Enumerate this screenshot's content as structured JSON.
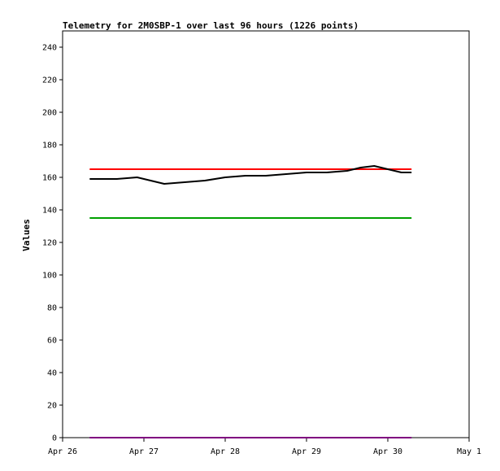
{
  "chart_data": {
    "type": "line",
    "title": "Telemetry for 2M0SBP-1 over last 96 hours (1226 points)",
    "xlabel": "",
    "ylabel": "Values",
    "x_unit": "date",
    "x_ticks": [
      "Apr 26",
      "Apr 27",
      "Apr 28",
      "Apr 29",
      "Apr 30",
      "May 1"
    ],
    "xlim": [
      "Apr 26 00:00",
      "May 1 00:00"
    ],
    "ylim": [
      0,
      250
    ],
    "y_ticks": [
      0,
      20,
      40,
      60,
      80,
      100,
      120,
      140,
      160,
      180,
      200,
      220,
      240
    ],
    "grid": false,
    "legend": "none",
    "series": [
      {
        "name": "",
        "color": "#ff0000",
        "x": [
          "Apr 26 08:00",
          "Apr 27 00:00",
          "Apr 28 00:00",
          "Apr 29 00:00",
          "Apr 29 12:00",
          "Apr 30 00:00",
          "Apr 30 07:00"
        ],
        "values": [
          165,
          165,
          165,
          165,
          165,
          165,
          165
        ]
      },
      {
        "name": "",
        "color": "#00a000",
        "x": [
          "Apr 26 08:00",
          "Apr 30 07:00"
        ],
        "values": [
          135,
          135
        ]
      },
      {
        "name": "",
        "color": "#000000",
        "x": [
          "Apr 26 08:00",
          "Apr 26 16:00",
          "Apr 26 22:00",
          "Apr 27 02:00",
          "Apr 27 06:00",
          "Apr 27 12:00",
          "Apr 27 18:00",
          "Apr 28 00:00",
          "Apr 28 06:00",
          "Apr 28 12:00",
          "Apr 28 18:00",
          "Apr 29 00:00",
          "Apr 29 06:00",
          "Apr 29 12:00",
          "Apr 29 16:00",
          "Apr 29 20:00",
          "Apr 30 00:00",
          "Apr 30 04:00",
          "Apr 30 07:00"
        ],
        "values": [
          159,
          159,
          160,
          158,
          156,
          157,
          158,
          160,
          161,
          161,
          162,
          163,
          163,
          164,
          166,
          167,
          165,
          163,
          163
        ]
      },
      {
        "name": "",
        "color": "#800080",
        "x": [
          "Apr 26 08:00",
          "Apr 30 07:00"
        ],
        "values": [
          0,
          0
        ]
      }
    ]
  }
}
